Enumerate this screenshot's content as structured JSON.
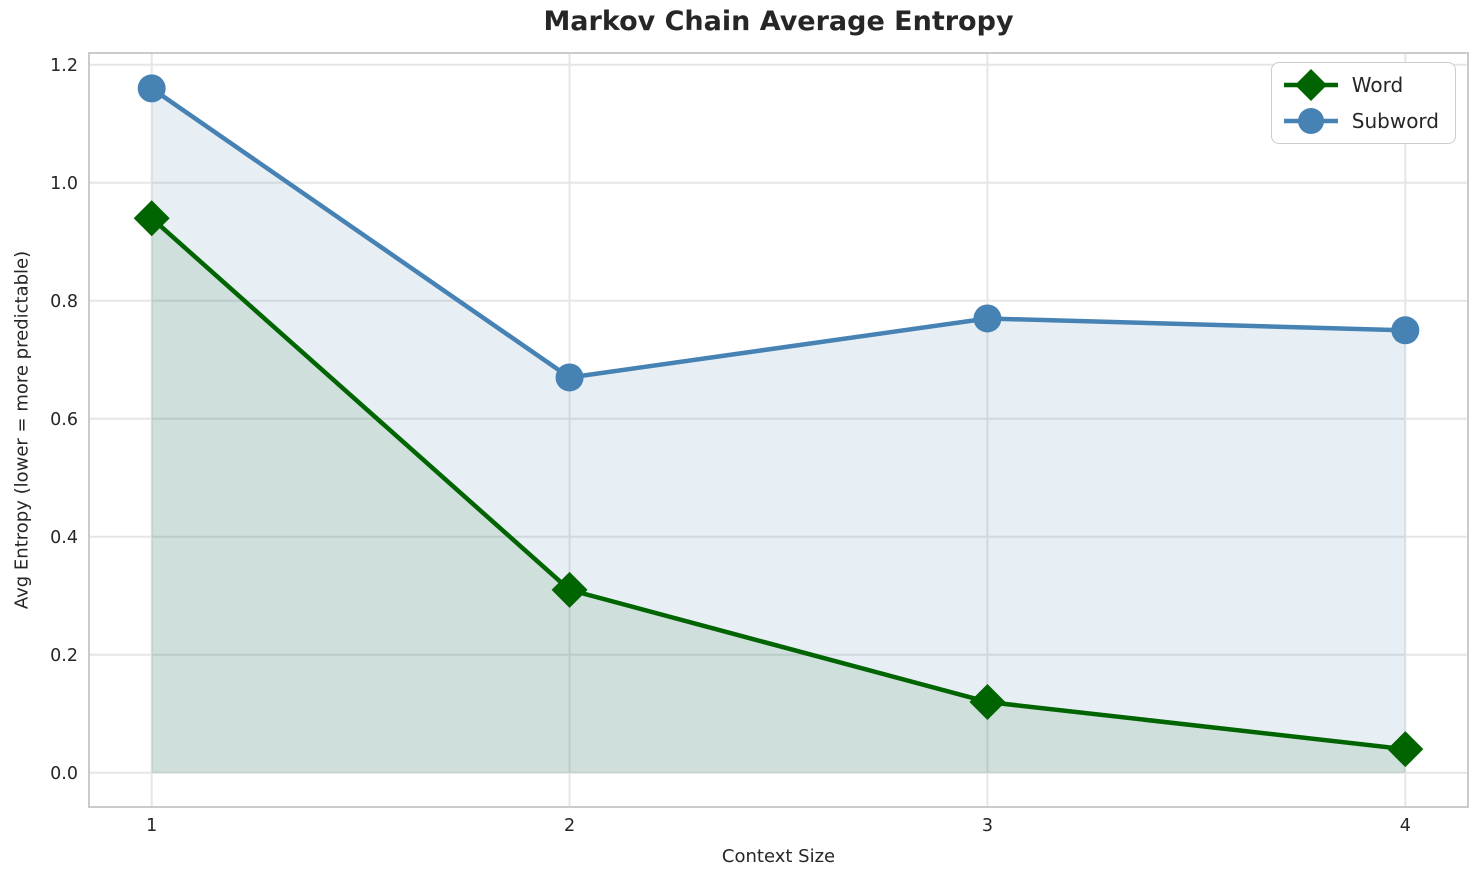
{
  "chart_data": {
    "type": "line",
    "title": "Markov Chain Average Entropy",
    "xlabel": "Context Size",
    "ylabel": "Avg Entropy (lower = more predictable)",
    "x": [
      1,
      2,
      3,
      4
    ],
    "series": [
      {
        "name": "Word",
        "values": [
          0.94,
          0.31,
          0.12,
          0.04
        ],
        "color": "#006400",
        "marker": "diamond",
        "fill_to_zero": true,
        "fill_color": "rgba(0,100,0,0.10)"
      },
      {
        "name": "Subword",
        "values": [
          1.16,
          0.67,
          0.77,
          0.75
        ],
        "color": "#4682b4",
        "marker": "circle",
        "fill_to_zero": true,
        "fill_color": "rgba(70,130,180,0.13)"
      }
    ],
    "xlim": [
      0.85,
      4.15
    ],
    "ylim": [
      -0.058,
      1.22
    ],
    "xticks": [
      1,
      2,
      3,
      4
    ],
    "xtick_labels": [
      "1",
      "2",
      "3",
      "4"
    ],
    "yticks": [
      0.0,
      0.2,
      0.4,
      0.6,
      0.8,
      1.0,
      1.2
    ],
    "ytick_labels": [
      "0.0",
      "0.2",
      "0.4",
      "0.6",
      "0.8",
      "1.0",
      "1.2"
    ],
    "grid": true,
    "legend_position": "top-right",
    "style": {
      "grid_color": "#e6e6e6",
      "spine_color": "#cbcbcb",
      "text_color": "#262626",
      "background": "#ffffff"
    }
  }
}
